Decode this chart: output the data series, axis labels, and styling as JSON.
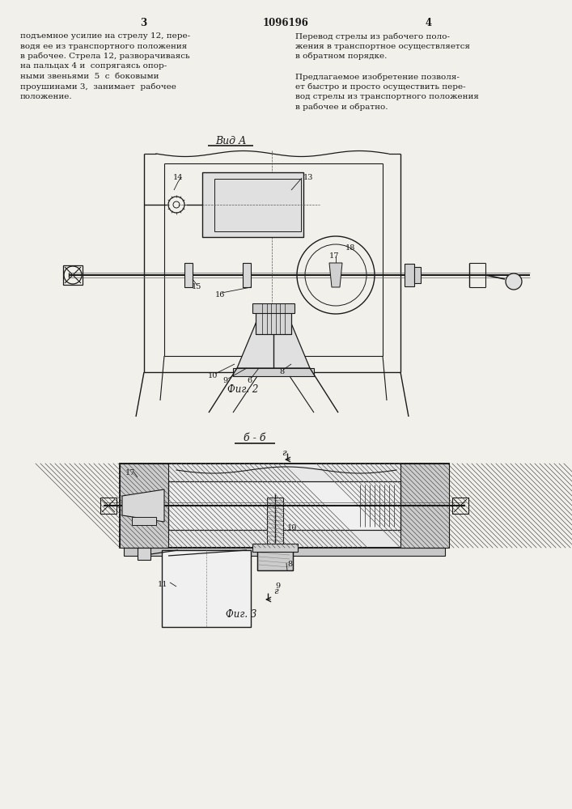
{
  "page_bg": "#f2f0eb",
  "text_color": "#1a1a1a",
  "line_color": "#1a1a1a",
  "page_number_left": "3",
  "page_number_center": "1096196",
  "page_number_right": "4",
  "col_left_text": [
    "подъемное усилие на стрелу 12, пере-",
    "водя ее из транспортного положения",
    "в рабочее. Стрела 12, разворачиваясь",
    "на пальцах 4 и  сопрягаясь опор-",
    "ными звеньями  5  с  боковыми",
    "проушинами 3,  занимает  рабочее",
    "положение."
  ],
  "col_right_text_1": [
    "Перевод стрелы из рабочего поло-",
    "жения в транспортное осуществляется",
    "в обратном порядке."
  ],
  "col_right_text_2": [
    "Предлагаемое изобретение позволя-",
    "ет быстро и просто осуществить пере-",
    "вод стрелы из транспортного положения",
    "в рабочее и обратно."
  ],
  "fig2_label": "Вид А",
  "fig2_caption": "Фиг. 2",
  "fig3_section": "б - б",
  "fig3_caption": "Фиг. 3"
}
